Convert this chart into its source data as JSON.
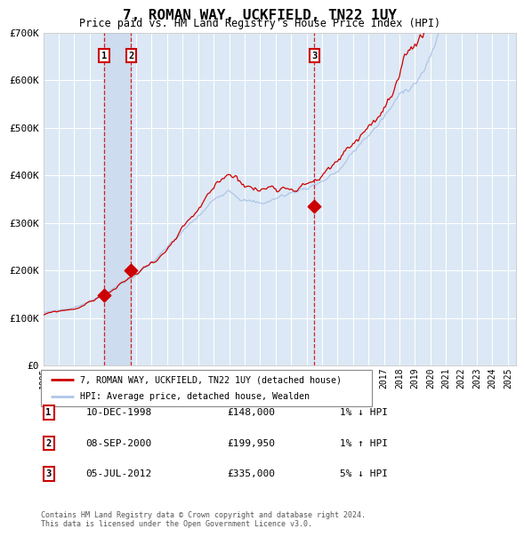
{
  "title": "7, ROMAN WAY, UCKFIELD, TN22 1UY",
  "subtitle": "Price paid vs. HM Land Registry's House Price Index (HPI)",
  "ylim": [
    0,
    700000
  ],
  "yticks": [
    0,
    100000,
    200000,
    300000,
    400000,
    500000,
    600000,
    700000
  ],
  "ytick_labels": [
    "£0",
    "£100K",
    "£200K",
    "£300K",
    "£400K",
    "£500K",
    "£600K",
    "£700K"
  ],
  "x_start_year": 1995,
  "x_end_year": 2025,
  "hpi_color": "#aec6e8",
  "price_color": "#cc0000",
  "marker_color": "#cc0000",
  "bg_color": "#dce8f5",
  "grid_color": "#ffffff",
  "transaction_years": [
    1998.917,
    2000.667,
    2012.5
  ],
  "transaction_prices": [
    148000,
    199950,
    335000
  ],
  "transaction_labels": [
    "1",
    "2",
    "3"
  ],
  "transaction_info": [
    {
      "num": "1",
      "date": "10-DEC-1998",
      "price": "£148,000",
      "hpi": "1% ↓ HPI"
    },
    {
      "num": "2",
      "date": "08-SEP-2000",
      "price": "£199,950",
      "hpi": "1% ↑ HPI"
    },
    {
      "num": "3",
      "date": "05-JUL-2012",
      "price": "£335,000",
      "hpi": "5% ↓ HPI"
    }
  ],
  "legend_entries": [
    "7, ROMAN WAY, UCKFIELD, TN22 1UY (detached house)",
    "HPI: Average price, detached house, Wealden"
  ],
  "footnote": "Contains HM Land Registry data © Crown copyright and database right 2024.\nThis data is licensed under the Open Government Licence v3.0.",
  "shade_color": "#cddcee"
}
